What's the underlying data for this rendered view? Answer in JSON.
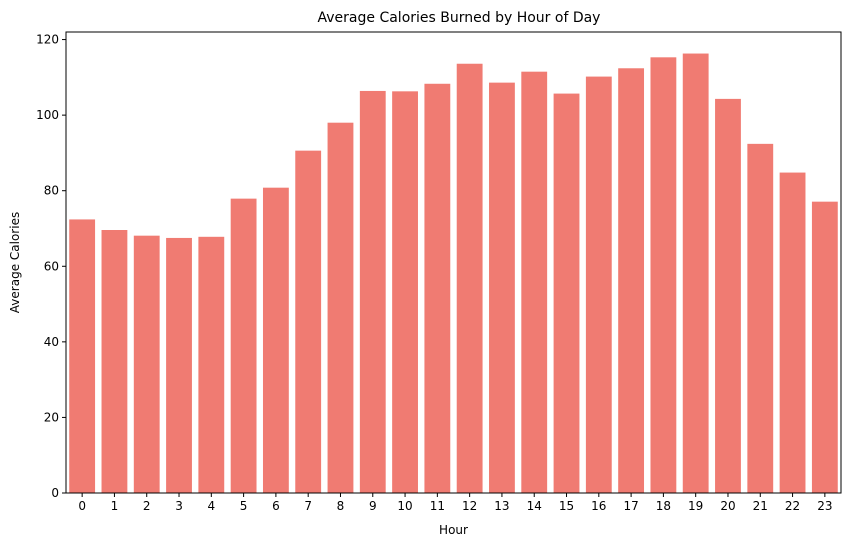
{
  "chart_data": {
    "type": "bar",
    "title": "Average Calories Burned by Hour of Day",
    "xlabel": "Hour",
    "ylabel": "Average Calories",
    "categories": [
      "0",
      "1",
      "2",
      "3",
      "4",
      "5",
      "6",
      "7",
      "8",
      "9",
      "10",
      "11",
      "12",
      "13",
      "14",
      "15",
      "16",
      "17",
      "18",
      "19",
      "20",
      "21",
      "22",
      "23"
    ],
    "values": [
      72.4,
      69.6,
      68.1,
      67.5,
      67.8,
      77.9,
      80.8,
      90.6,
      98.0,
      106.4,
      106.3,
      108.3,
      113.6,
      108.6,
      111.5,
      105.7,
      110.2,
      112.4,
      115.3,
      116.3,
      104.3,
      92.4,
      84.8,
      77.1
    ],
    "ylim": [
      0,
      122
    ],
    "yticks": [
      0,
      20,
      40,
      60,
      80,
      100,
      120
    ],
    "grid": false,
    "bar_color": "#f07b72"
  }
}
